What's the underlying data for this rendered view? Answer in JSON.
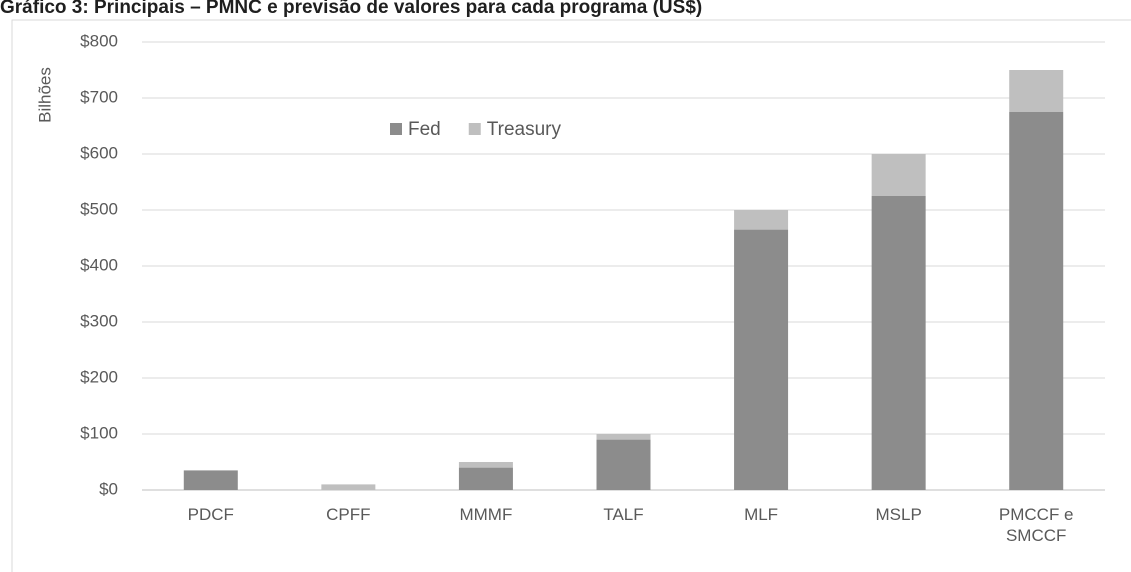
{
  "chart_data": {
    "type": "stacked_bar",
    "title": "Gráfico 3: Principais – PMNC e previsão de valores para cada programa (US$)",
    "y_label": "Bilhões",
    "categories": [
      "PDCF",
      "CPFF",
      "MMMF",
      "TALF",
      "MLF",
      "MSLP",
      "PMCCF e SMCCF"
    ],
    "series": [
      {
        "name": "Fed",
        "color": "#8c8c8c",
        "values": [
          35,
          0,
          40,
          90,
          465,
          525,
          675
        ]
      },
      {
        "name": "Treasury",
        "color": "#bfbfbf",
        "values": [
          0,
          10,
          10,
          10,
          35,
          75,
          75
        ]
      }
    ],
    "ylim": [
      0,
      800
    ],
    "yticks": [
      {
        "value": 0,
        "label": "$0"
      },
      {
        "value": 100,
        "label": "$100"
      },
      {
        "value": 200,
        "label": "$200"
      },
      {
        "value": 300,
        "label": "$300"
      },
      {
        "value": 400,
        "label": "$400"
      },
      {
        "value": 500,
        "label": "$500"
      },
      {
        "value": 600,
        "label": "$600"
      },
      {
        "value": 700,
        "label": "$700"
      },
      {
        "value": 800,
        "label": "$800"
      }
    ],
    "grid": true,
    "legend": "top"
  }
}
